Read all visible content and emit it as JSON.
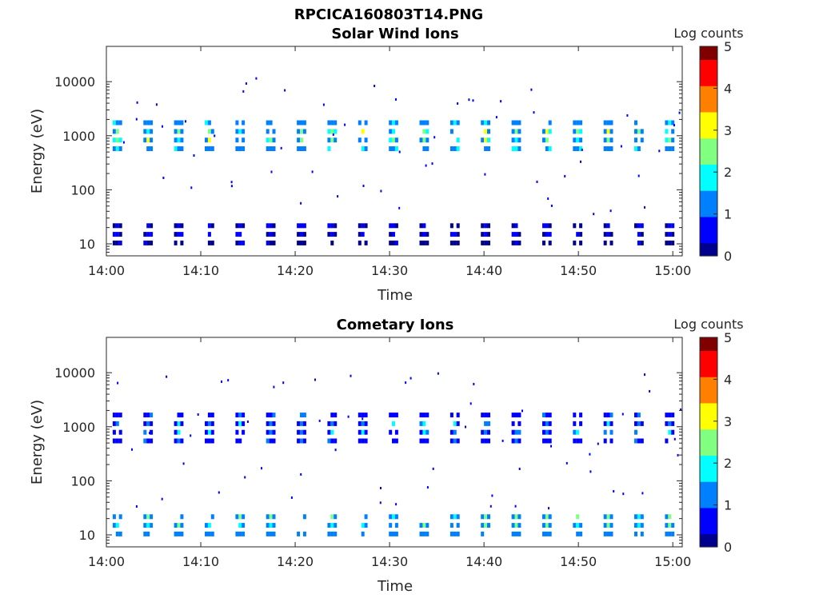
{
  "figure_title": "RPCICA160803T14.PNG",
  "colors": {
    "colormap": [
      "#00008f",
      "#0000ff",
      "#0080ff",
      "#00ffff",
      "#80ff80",
      "#ffff00",
      "#ff8000",
      "#ff0000",
      "#800000"
    ]
  },
  "chart_data": [
    {
      "type": "heatmap",
      "title": "Solar Wind Ions",
      "xlabel": "Time",
      "ylabel": "Energy (eV)",
      "x_ticks": [
        "14:00",
        "14:10",
        "14:20",
        "14:30",
        "14:40",
        "14:50",
        "15:00"
      ],
      "x_tick_minutes": [
        0,
        10,
        20,
        30,
        40,
        50,
        60
      ],
      "xlim_minutes": [
        0,
        61
      ],
      "y_scale": "log",
      "y_ticks": [
        "10",
        "100",
        "1000",
        "10000"
      ],
      "y_tick_values": [
        10,
        100,
        1000,
        10000
      ],
      "ylim": [
        6,
        45000
      ],
      "colorbar": {
        "label": "Log counts",
        "min": 0,
        "max": 5,
        "ticks": [
          "0",
          "1",
          "2",
          "3",
          "4",
          "5"
        ]
      },
      "bursts": {
        "start_minutes": 1.0,
        "period_minutes": 3.25,
        "count": 19,
        "main_band": {
          "energy_eV": 1000,
          "peak_log_counts": 3.0
        },
        "low_band": {
          "energy_eV": 15,
          "peak_log_counts": 0.6
        }
      }
    },
    {
      "type": "heatmap",
      "title": "Cometary Ions",
      "xlabel": "Time",
      "ylabel": "Energy (eV)",
      "x_ticks": [
        "14:00",
        "14:10",
        "14:20",
        "14:30",
        "14:40",
        "14:50",
        "15:00"
      ],
      "x_tick_minutes": [
        0,
        10,
        20,
        30,
        40,
        50,
        60
      ],
      "xlim_minutes": [
        0,
        61
      ],
      "y_scale": "log",
      "y_ticks": [
        "10",
        "100",
        "1000",
        "10000"
      ],
      "y_tick_values": [
        10,
        100,
        1000,
        10000
      ],
      "ylim": [
        6,
        45000
      ],
      "colorbar": {
        "label": "Log counts",
        "min": 0,
        "max": 5,
        "ticks": [
          "0",
          "1",
          "2",
          "3",
          "4",
          "5"
        ]
      },
      "bursts": {
        "start_minutes": 1.0,
        "period_minutes": 3.25,
        "count": 19,
        "main_band": {
          "energy_eV": 950,
          "peak_log_counts": 1.8
        },
        "low_band": {
          "energy_eV": 15,
          "peak_log_counts": 2.7
        }
      }
    }
  ]
}
